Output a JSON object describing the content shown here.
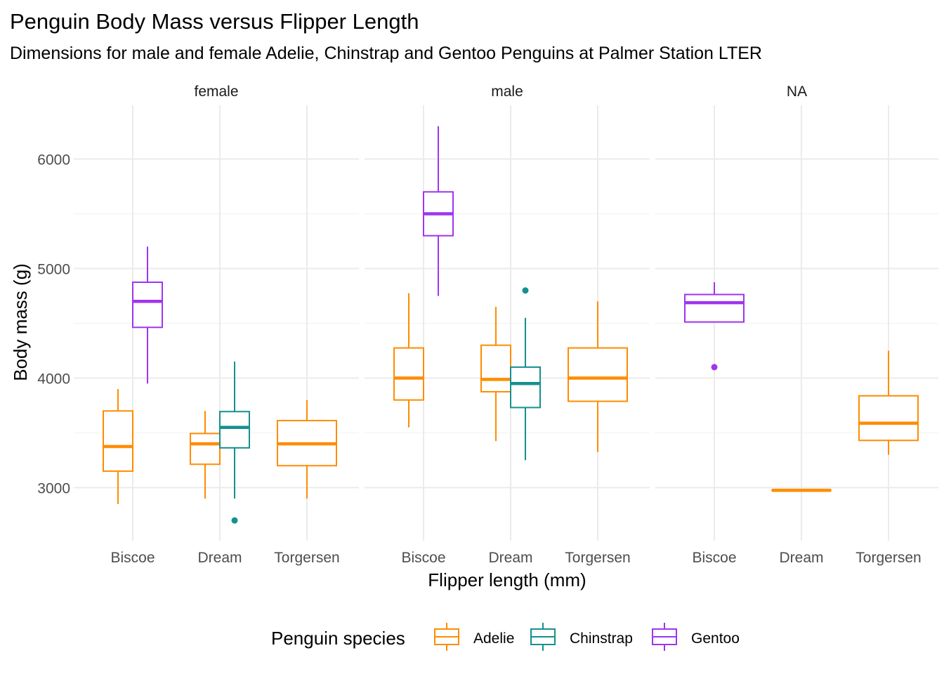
{
  "chart_data": {
    "type": "boxplot",
    "title": "Penguin Body Mass versus Flipper Length",
    "subtitle": "Dimensions for male and female Adelie, Chinstrap and Gentoo Penguins at Palmer Station LTER",
    "xlabel": "Flipper length (mm)",
    "ylabel": "Body mass (g)",
    "ylim": [
      2550,
      6500
    ],
    "yticks": [
      3000,
      4000,
      5000,
      6000
    ],
    "categories": [
      "Biscoe",
      "Dream",
      "Torgersen"
    ],
    "facets": [
      "female",
      "male",
      "NA"
    ],
    "grid": true,
    "legend": {
      "title": "Penguin species",
      "position": "bottom",
      "entries": [
        {
          "name": "Adelie",
          "color": "#FF8C00"
        },
        {
          "name": "Chinstrap",
          "color": "#159090"
        },
        {
          "name": "Gentoo",
          "color": "#A034F0"
        }
      ]
    },
    "boxes": [
      {
        "facet": "female",
        "island": "Biscoe",
        "species": "Adelie",
        "min": 2850,
        "q1": 3150,
        "median": 3375,
        "q3": 3700,
        "max": 3900,
        "outliers": []
      },
      {
        "facet": "female",
        "island": "Biscoe",
        "species": "Gentoo",
        "min": 3950,
        "q1": 4463,
        "median": 4700,
        "q3": 4875,
        "max": 5200,
        "outliers": []
      },
      {
        "facet": "female",
        "island": "Dream",
        "species": "Adelie",
        "min": 2900,
        "q1": 3213,
        "median": 3400,
        "q3": 3494,
        "max": 3700,
        "outliers": []
      },
      {
        "facet": "female",
        "island": "Dream",
        "species": "Chinstrap",
        "min": 2900,
        "q1": 3363,
        "median": 3550,
        "q3": 3694,
        "max": 4150,
        "outliers": [
          2700
        ]
      },
      {
        "facet": "female",
        "island": "Torgersen",
        "species": "Adelie",
        "min": 2900,
        "q1": 3200,
        "median": 3400,
        "q3": 3612,
        "max": 3800,
        "outliers": []
      },
      {
        "facet": "male",
        "island": "Biscoe",
        "species": "Adelie",
        "min": 3550,
        "q1": 3800,
        "median": 4000,
        "q3": 4275,
        "max": 4775,
        "outliers": []
      },
      {
        "facet": "male",
        "island": "Biscoe",
        "species": "Gentoo",
        "min": 4750,
        "q1": 5300,
        "median": 5500,
        "q3": 5700,
        "max": 6300,
        "outliers": []
      },
      {
        "facet": "male",
        "island": "Dream",
        "species": "Adelie",
        "min": 3425,
        "q1": 3875,
        "median": 3988,
        "q3": 4300,
        "max": 4650,
        "outliers": []
      },
      {
        "facet": "male",
        "island": "Dream",
        "species": "Chinstrap",
        "min": 3250,
        "q1": 3731,
        "median": 3950,
        "q3": 4100,
        "max": 4550,
        "outliers": [
          4800
        ]
      },
      {
        "facet": "male",
        "island": "Torgersen",
        "species": "Adelie",
        "min": 3325,
        "q1": 3788,
        "median": 4000,
        "q3": 4275,
        "max": 4700,
        "outliers": []
      },
      {
        "facet": "NA",
        "island": "Biscoe",
        "species": "Gentoo",
        "min": 4512,
        "q1": 4512,
        "median": 4688,
        "q3": 4763,
        "max": 4875,
        "outliers": [
          4100
        ]
      },
      {
        "facet": "NA",
        "island": "Dream",
        "species": "Adelie",
        "min": 2975,
        "q1": 2975,
        "median": 2975,
        "q3": 2975,
        "max": 2975,
        "outliers": []
      },
      {
        "facet": "NA",
        "island": "Torgersen",
        "species": "Adelie",
        "min": 3300,
        "q1": 3431,
        "median": 3588,
        "q3": 3838,
        "max": 4250,
        "outliers": []
      }
    ]
  }
}
